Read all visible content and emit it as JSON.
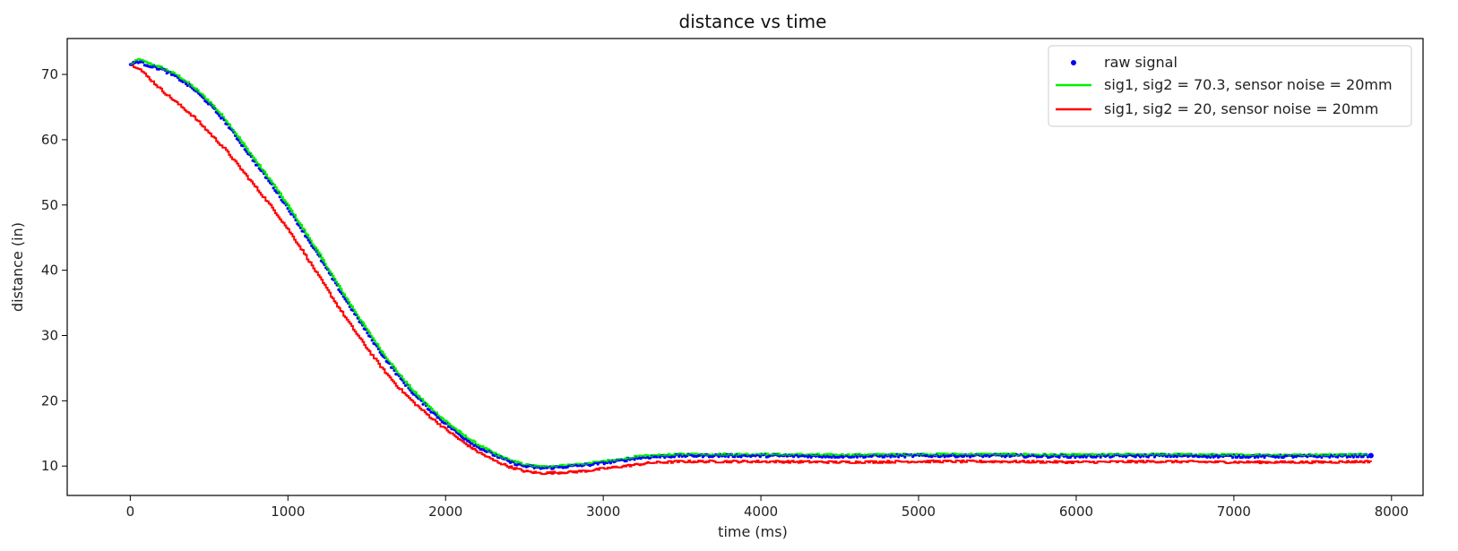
{
  "chart_data": {
    "type": "line",
    "title": "distance vs time",
    "xlabel": "time (ms)",
    "ylabel": "distance (in)",
    "xlim": [
      -400,
      8200
    ],
    "ylim": [
      5.5,
      75.5
    ],
    "xticks": [
      0,
      1000,
      2000,
      3000,
      4000,
      5000,
      6000,
      7000,
      8000
    ],
    "yticks": [
      10,
      20,
      30,
      40,
      50,
      60,
      70
    ],
    "grid": false,
    "legend_position": "top-right",
    "x_range": [
      0,
      7870
    ],
    "series": [
      {
        "name": "raw signal",
        "kind": "scatter",
        "color": "#0000ff",
        "x": [
          0,
          50,
          100,
          200,
          300,
          400,
          500,
          600,
          700,
          800,
          900,
          1000,
          1100,
          1200,
          1300,
          1400,
          1500,
          1600,
          1700,
          1800,
          1900,
          2000,
          2100,
          2200,
          2300,
          2400,
          2500,
          2600,
          2700,
          2800,
          2900,
          3000,
          3100,
          3200,
          3300,
          3400,
          3500,
          4000,
          4500,
          5000,
          5500,
          6000,
          6500,
          7000,
          7500,
          7870
        ],
        "y": [
          71.5,
          72.0,
          71.5,
          70.8,
          69.5,
          67.8,
          65.5,
          62.8,
          59.5,
          56.2,
          53.0,
          49.5,
          45.8,
          42.0,
          38.0,
          34.2,
          30.5,
          27.0,
          23.8,
          21.0,
          18.6,
          16.5,
          14.6,
          13.0,
          11.8,
          10.7,
          10.0,
          9.7,
          9.8,
          10.0,
          10.2,
          10.5,
          10.8,
          11.2,
          11.4,
          11.5,
          11.6,
          11.6,
          11.5,
          11.6,
          11.6,
          11.5,
          11.6,
          11.5,
          11.5,
          11.6
        ]
      },
      {
        "name": "sig1, sig2 = 70.3, sensor noise = 20mm",
        "kind": "line",
        "color": "#00ee00",
        "x": [
          0,
          50,
          100,
          200,
          300,
          400,
          500,
          600,
          700,
          800,
          900,
          1000,
          1100,
          1200,
          1300,
          1400,
          1500,
          1600,
          1700,
          1800,
          1900,
          2000,
          2100,
          2200,
          2300,
          2400,
          2500,
          2600,
          2700,
          2800,
          2900,
          3000,
          3100,
          3200,
          3300,
          3400,
          3500,
          4000,
          4500,
          5000,
          5500,
          6000,
          6500,
          7000,
          7500,
          7870
        ],
        "y": [
          71.6,
          72.3,
          71.8,
          71.0,
          69.8,
          68.0,
          65.8,
          63.1,
          59.8,
          56.5,
          53.3,
          49.8,
          46.1,
          42.3,
          38.3,
          34.5,
          30.8,
          27.3,
          24.1,
          21.3,
          18.9,
          16.8,
          14.9,
          13.3,
          12.0,
          10.9,
          10.2,
          9.9,
          10.0,
          10.2,
          10.4,
          10.7,
          11.0,
          11.4,
          11.6,
          11.7,
          11.8,
          11.8,
          11.7,
          11.8,
          11.8,
          11.7,
          11.8,
          11.7,
          11.7,
          11.8
        ]
      },
      {
        "name": "sig1, sig2 = 20, sensor noise = 20mm",
        "kind": "line",
        "color": "#ff0000",
        "x": [
          0,
          50,
          100,
          200,
          300,
          400,
          500,
          600,
          700,
          800,
          900,
          1000,
          1100,
          1200,
          1300,
          1400,
          1500,
          1600,
          1700,
          1800,
          1900,
          2000,
          2100,
          2200,
          2300,
          2400,
          2500,
          2600,
          2700,
          2800,
          2900,
          3000,
          3100,
          3200,
          3300,
          3400,
          3500,
          4000,
          4500,
          5000,
          5500,
          6000,
          6500,
          7000,
          7500,
          7870
        ],
        "y": [
          71.5,
          71.0,
          69.8,
          67.5,
          65.5,
          63.5,
          61.0,
          58.5,
          55.5,
          52.5,
          49.5,
          46.2,
          42.6,
          38.8,
          35.0,
          31.4,
          28.0,
          24.8,
          22.0,
          19.6,
          17.5,
          15.6,
          13.8,
          12.2,
          10.9,
          9.9,
          9.2,
          8.9,
          9.0,
          9.1,
          9.3,
          9.6,
          9.9,
          10.2,
          10.5,
          10.6,
          10.7,
          10.7,
          10.6,
          10.7,
          10.7,
          10.6,
          10.7,
          10.6,
          10.6,
          10.7
        ]
      }
    ]
  }
}
